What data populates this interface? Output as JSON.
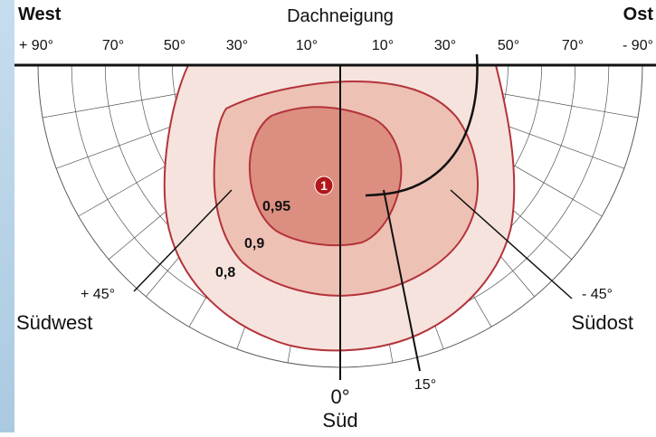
{
  "header": {
    "title": "Dachneigung",
    "left_label": "West",
    "right_label": "Ost"
  },
  "tilt_scale": {
    "labels": [
      "+ 90°",
      "70°",
      "50°",
      "30°",
      "10°",
      "10°",
      "30°",
      "50°",
      "70°",
      "- 90°"
    ]
  },
  "orientation": {
    "southwest_angle": "+ 45°",
    "southwest_label": "Südwest",
    "southeast_angle": "- 45°",
    "southeast_label": "Südost",
    "south_angle": "0°",
    "south_label": "Süd",
    "pointer_label": "15°"
  },
  "contours": {
    "labels": [
      "0,95",
      "0,9",
      "0,8"
    ],
    "marker": "1"
  },
  "colors": {
    "frame": "#a7c6dd",
    "outer_fill": "#f6e3dd",
    "mid_fill": "#eec1b5",
    "inner_fill": "#dc8f80",
    "contour_stroke": "#b3333a",
    "grid": "#555555",
    "marker_fill": "#b2161b"
  }
}
